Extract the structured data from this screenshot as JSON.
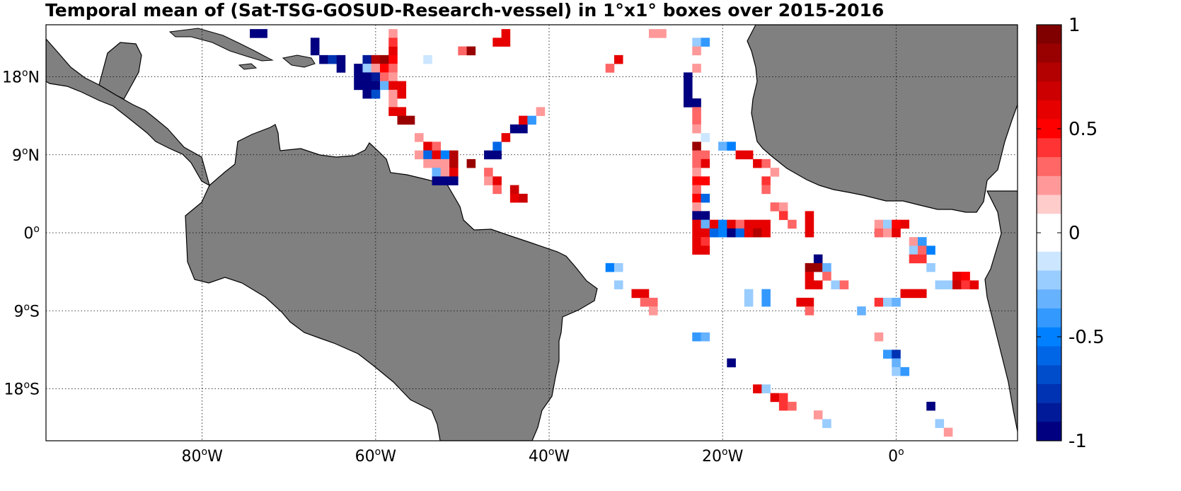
{
  "title": "Temporal mean of (Sat-TSG-GOSUD-Research-vessel) in 1°x1° boxes over 2015-2016",
  "colors": {
    "land": "#808080",
    "coast": "#000000",
    "ocean": "#ffffff",
    "grid": "#000000"
  },
  "map_extent": {
    "lon": [
      -98,
      14
    ],
    "lat": [
      -24,
      24
    ]
  },
  "lon_ticks": [
    {
      "value": -80,
      "num": "80",
      "deg": "o",
      "hemi": "W"
    },
    {
      "value": -60,
      "num": "60",
      "deg": "o",
      "hemi": "W"
    },
    {
      "value": -40,
      "num": "40",
      "deg": "o",
      "hemi": "W"
    },
    {
      "value": -20,
      "num": "20",
      "deg": "o",
      "hemi": "W"
    },
    {
      "value": 0,
      "num": "0",
      "deg": "o",
      "hemi": ""
    }
  ],
  "lat_ticks": [
    {
      "value": 18,
      "num": "18",
      "deg": "o",
      "hemi": "N"
    },
    {
      "value": 9,
      "num": "9",
      "deg": "o",
      "hemi": "N"
    },
    {
      "value": 0,
      "num": "0",
      "deg": "o",
      "hemi": ""
    },
    {
      "value": -9,
      "num": "9",
      "deg": "o",
      "hemi": "S"
    },
    {
      "value": -18,
      "num": "18",
      "deg": "o",
      "hemi": "S"
    }
  ],
  "colorbar": {
    "range": [
      -1,
      1
    ],
    "labels": [
      "1",
      "0.5",
      "0",
      "-0.5",
      "-1"
    ],
    "label_values": [
      1,
      0.5,
      0,
      -0.5,
      -1
    ],
    "colors_top_to_bottom": [
      "#800000",
      "#990000",
      "#b30000",
      "#cc0000",
      "#e60000",
      "#ff0000",
      "#ff3333",
      "#ff6666",
      "#ff9999",
      "#ffcccc",
      "#ffffff",
      "#ffffff",
      "#cce6ff",
      "#99ccff",
      "#66b2ff",
      "#3399ff",
      "#0080ff",
      "#0066e6",
      "#004dcc",
      "#0033b3",
      "#001a99",
      "#000080"
    ]
  },
  "chart_data": {
    "type": "heatmap",
    "title": "Temporal mean of (Sat-TSG-GOSUD-Research-vessel) in 1°x1° boxes over 2015-2016",
    "grid": "1°x1° boxes",
    "value_range": [
      -1,
      1
    ],
    "cells": [
      {
        "lon": -74,
        "lat": 23,
        "v": -1.0
      },
      {
        "lon": -73,
        "lat": 23,
        "v": -1.0
      },
      {
        "lon": -67,
        "lat": 22,
        "v": -1.0
      },
      {
        "lon": -67,
        "lat": 21,
        "v": -1.0
      },
      {
        "lon": -66,
        "lat": 20,
        "v": -1.0
      },
      {
        "lon": -65,
        "lat": 20,
        "v": -0.8
      },
      {
        "lon": -64,
        "lat": 20,
        "v": -1.0
      },
      {
        "lon": -64,
        "lat": 19,
        "v": -1.0
      },
      {
        "lon": -61,
        "lat": 20,
        "v": -0.9
      },
      {
        "lon": -60,
        "lat": 20,
        "v": 0.8
      },
      {
        "lon": -59,
        "lat": 20,
        "v": 0.9
      },
      {
        "lon": -58,
        "lat": 20,
        "v": 0.5
      },
      {
        "lon": -62,
        "lat": 19,
        "v": -1.0
      },
      {
        "lon": -61,
        "lat": 19,
        "v": -0.2
      },
      {
        "lon": -60,
        "lat": 19,
        "v": 0.2
      },
      {
        "lon": -59,
        "lat": 19,
        "v": 0.5
      },
      {
        "lon": -58,
        "lat": 19,
        "v": 0.3
      },
      {
        "lon": -62,
        "lat": 18,
        "v": -1.0
      },
      {
        "lon": -61,
        "lat": 18,
        "v": -1.0
      },
      {
        "lon": -60,
        "lat": 18,
        "v": -0.9
      },
      {
        "lon": -59,
        "lat": 18,
        "v": 0.3
      },
      {
        "lon": -58,
        "lat": 18,
        "v": 0.2
      },
      {
        "lon": -62,
        "lat": 17,
        "v": -1.0
      },
      {
        "lon": -61,
        "lat": 17,
        "v": -1.0
      },
      {
        "lon": -60,
        "lat": 17,
        "v": -1.0
      },
      {
        "lon": -59,
        "lat": 17,
        "v": -0.3
      },
      {
        "lon": -58,
        "lat": 17,
        "v": 0.6
      },
      {
        "lon": -57,
        "lat": 17,
        "v": 0.6
      },
      {
        "lon": -61,
        "lat": 16,
        "v": -1.0
      },
      {
        "lon": -60,
        "lat": 16,
        "v": -0.7
      },
      {
        "lon": -58,
        "lat": 16,
        "v": 0.2
      },
      {
        "lon": -57,
        "lat": 16,
        "v": 0.6
      },
      {
        "lon": -58,
        "lat": 15,
        "v": 0.2
      },
      {
        "lon": -58,
        "lat": 14,
        "v": 0.6
      },
      {
        "lon": -57,
        "lat": 14,
        "v": 0.6
      },
      {
        "lon": -57,
        "lat": 13,
        "v": 0.9
      },
      {
        "lon": -56,
        "lat": 13,
        "v": 0.9
      },
      {
        "lon": -58,
        "lat": 23,
        "v": 0.2
      },
      {
        "lon": -58,
        "lat": 21,
        "v": 0.6
      },
      {
        "lon": -58,
        "lat": 22,
        "v": 0.4
      },
      {
        "lon": -54,
        "lat": 20,
        "v": -0.1
      },
      {
        "lon": -50,
        "lat": 21,
        "v": 0.3
      },
      {
        "lon": -49,
        "lat": 21,
        "v": 0.9
      },
      {
        "lon": -46,
        "lat": 22,
        "v": 0.6
      },
      {
        "lon": -45,
        "lat": 22,
        "v": 0.6
      },
      {
        "lon": -45,
        "lat": 23,
        "v": 0.6
      },
      {
        "lon": -32,
        "lat": 20,
        "v": 0.6
      },
      {
        "lon": -33,
        "lat": 19,
        "v": 0.3
      },
      {
        "lon": -28,
        "lat": 23,
        "v": 0.2
      },
      {
        "lon": -27,
        "lat": 23,
        "v": 0.2
      },
      {
        "lon": -23,
        "lat": 22,
        "v": -0.2
      },
      {
        "lon": -22,
        "lat": 22,
        "v": -0.4
      },
      {
        "lon": -23,
        "lat": 21,
        "v": 0.2
      },
      {
        "lon": -23,
        "lat": 19,
        "v": 0.2
      },
      {
        "lon": -24,
        "lat": 18,
        "v": -1.0
      },
      {
        "lon": -24,
        "lat": 17,
        "v": -1.0
      },
      {
        "lon": -24,
        "lat": 16,
        "v": -1.0
      },
      {
        "lon": -24,
        "lat": 15,
        "v": -1.0
      },
      {
        "lon": -23,
        "lat": 15,
        "v": -1.0
      },
      {
        "lon": -23,
        "lat": 14,
        "v": 0.3
      },
      {
        "lon": -23,
        "lat": 13,
        "v": 0.3
      },
      {
        "lon": -23,
        "lat": 12,
        "v": 0.2
      },
      {
        "lon": -22,
        "lat": 11,
        "v": -0.1
      },
      {
        "lon": -23,
        "lat": 10,
        "v": 0.9
      },
      {
        "lon": -23,
        "lat": 9,
        "v": 0.3
      },
      {
        "lon": -22,
        "lat": 9,
        "v": 0.3
      },
      {
        "lon": -23,
        "lat": 8,
        "v": 0.3
      },
      {
        "lon": -22,
        "lat": 8,
        "v": 0.6
      },
      {
        "lon": -23,
        "lat": 7,
        "v": 0.2
      },
      {
        "lon": -23,
        "lat": 6,
        "v": 0.5
      },
      {
        "lon": -22,
        "lat": 6,
        "v": 0.5
      },
      {
        "lon": -23,
        "lat": 5,
        "v": 0.3
      },
      {
        "lon": -23,
        "lat": 4,
        "v": 0.5
      },
      {
        "lon": -22,
        "lat": 4,
        "v": -0.6
      },
      {
        "lon": -23,
        "lat": 3,
        "v": 0.2
      },
      {
        "lon": -20,
        "lat": 10,
        "v": -0.3
      },
      {
        "lon": -19,
        "lat": 10,
        "v": -0.5
      },
      {
        "lon": -18,
        "lat": 9,
        "v": 0.6
      },
      {
        "lon": -17,
        "lat": 9,
        "v": 0.6
      },
      {
        "lon": -16,
        "lat": 8,
        "v": 0.6
      },
      {
        "lon": -15,
        "lat": 8,
        "v": 0.3
      },
      {
        "lon": -14,
        "lat": 7,
        "v": 0.2
      },
      {
        "lon": -15,
        "lat": 6,
        "v": 0.4
      },
      {
        "lon": -15,
        "lat": 5,
        "v": 0.3
      },
      {
        "lon": -14,
        "lat": 3,
        "v": 0.3
      },
      {
        "lon": -13,
        "lat": 3,
        "v": 0.2
      },
      {
        "lon": -13,
        "lat": 2,
        "v": 0.4
      },
      {
        "lon": -12,
        "lat": 1,
        "v": 0.3
      },
      {
        "lon": -10,
        "lat": 2,
        "v": 0.6
      },
      {
        "lon": -10,
        "lat": 1,
        "v": 0.6
      },
      {
        "lon": -10,
        "lat": 0,
        "v": 0.6
      },
      {
        "lon": -23,
        "lat": 2,
        "v": -1.0
      },
      {
        "lon": -22,
        "lat": 2,
        "v": -1.0
      },
      {
        "lon": -23,
        "lat": 1,
        "v": 0.6
      },
      {
        "lon": -22,
        "lat": 1,
        "v": -0.3
      },
      {
        "lon": -21,
        "lat": 1,
        "v": 0.6
      },
      {
        "lon": -20,
        "lat": 1,
        "v": -0.5
      },
      {
        "lon": -19,
        "lat": 1,
        "v": 0.6
      },
      {
        "lon": -18,
        "lat": 1,
        "v": 0.3
      },
      {
        "lon": -17,
        "lat": 1,
        "v": 0.6
      },
      {
        "lon": -16,
        "lat": 1,
        "v": 0.6
      },
      {
        "lon": -15,
        "lat": 1,
        "v": 0.6
      },
      {
        "lon": -23,
        "lat": 0,
        "v": 0.6
      },
      {
        "lon": -22,
        "lat": 0,
        "v": 0.6
      },
      {
        "lon": -21,
        "lat": 0,
        "v": -0.6
      },
      {
        "lon": -20,
        "lat": 0,
        "v": -0.5
      },
      {
        "lon": -19,
        "lat": 0,
        "v": -1.0
      },
      {
        "lon": -18,
        "lat": 0,
        "v": -0.6
      },
      {
        "lon": -17,
        "lat": 0,
        "v": 0.6
      },
      {
        "lon": -16,
        "lat": 0,
        "v": 0.8
      },
      {
        "lon": -15,
        "lat": 0,
        "v": 0.6
      },
      {
        "lon": -23,
        "lat": -1,
        "v": 0.6
      },
      {
        "lon": -22,
        "lat": -1,
        "v": 0.4
      },
      {
        "lon": -23,
        "lat": -2,
        "v": 0.6
      },
      {
        "lon": -22,
        "lat": -2,
        "v": 0.6
      },
      {
        "lon": -55,
        "lat": 11,
        "v": 0.2
      },
      {
        "lon": -54,
        "lat": 10,
        "v": 0.6
      },
      {
        "lon": -53,
        "lat": 10,
        "v": 0.3
      },
      {
        "lon": -55,
        "lat": 9,
        "v": 0.2
      },
      {
        "lon": -54,
        "lat": 9,
        "v": -0.6
      },
      {
        "lon": -53,
        "lat": 9,
        "v": 0.6
      },
      {
        "lon": -52,
        "lat": 9,
        "v": -0.5
      },
      {
        "lon": -51,
        "lat": 9,
        "v": 0.8
      },
      {
        "lon": -54,
        "lat": 8,
        "v": 0.2
      },
      {
        "lon": -53,
        "lat": 8,
        "v": 0.2
      },
      {
        "lon": -52,
        "lat": 8,
        "v": 0.2
      },
      {
        "lon": -51,
        "lat": 8,
        "v": 0.8
      },
      {
        "lon": -49,
        "lat": 8,
        "v": 0.9
      },
      {
        "lon": -53,
        "lat": 7,
        "v": -0.3
      },
      {
        "lon": -52,
        "lat": 7,
        "v": 0.2
      },
      {
        "lon": -51,
        "lat": 7,
        "v": 0.6
      },
      {
        "lon": -53,
        "lat": 6,
        "v": -1.0
      },
      {
        "lon": -52,
        "lat": 6,
        "v": -1.0
      },
      {
        "lon": -51,
        "lat": 6,
        "v": -1.0
      },
      {
        "lon": -47,
        "lat": 7,
        "v": 0.3
      },
      {
        "lon": -47,
        "lat": 6,
        "v": 0.2
      },
      {
        "lon": -46,
        "lat": 6,
        "v": 0.6
      },
      {
        "lon": -46,
        "lat": 5,
        "v": 0.3
      },
      {
        "lon": -44,
        "lat": 5,
        "v": 0.7
      },
      {
        "lon": -44,
        "lat": 4,
        "v": 0.6
      },
      {
        "lon": -43,
        "lat": 4,
        "v": 0.7
      },
      {
        "lon": -47,
        "lat": 9,
        "v": -1.0
      },
      {
        "lon": -46,
        "lat": 9,
        "v": -1.0
      },
      {
        "lon": -46,
        "lat": 10,
        "v": -0.6
      },
      {
        "lon": -45,
        "lat": 11,
        "v": 0.6
      },
      {
        "lon": -44,
        "lat": 12,
        "v": -1.0
      },
      {
        "lon": -43,
        "lat": 12,
        "v": -1.0
      },
      {
        "lon": -43,
        "lat": 13,
        "v": 0.6
      },
      {
        "lon": -42,
        "lat": 13,
        "v": -0.4
      },
      {
        "lon": -41,
        "lat": 14,
        "v": 0.2
      },
      {
        "lon": -33,
        "lat": -4,
        "v": -0.5
      },
      {
        "lon": -32,
        "lat": -4,
        "v": -0.2
      },
      {
        "lon": -32,
        "lat": -6,
        "v": -0.2
      },
      {
        "lon": -30,
        "lat": -7,
        "v": 0.6
      },
      {
        "lon": -29,
        "lat": -7,
        "v": 0.6
      },
      {
        "lon": -29,
        "lat": -8,
        "v": 0.3
      },
      {
        "lon": -28,
        "lat": -8,
        "v": 0.3
      },
      {
        "lon": -28,
        "lat": -9,
        "v": 0.2
      },
      {
        "lon": -23,
        "lat": -12,
        "v": -0.4
      },
      {
        "lon": -22,
        "lat": -12,
        "v": -0.3
      },
      {
        "lon": -19,
        "lat": -15,
        "v": -1.0
      },
      {
        "lon": -17,
        "lat": -7,
        "v": -0.2
      },
      {
        "lon": -17,
        "lat": -8,
        "v": -0.2
      },
      {
        "lon": -15,
        "lat": -7,
        "v": -0.4
      },
      {
        "lon": -15,
        "lat": -8,
        "v": -0.4
      },
      {
        "lon": -16,
        "lat": -18,
        "v": 0.6
      },
      {
        "lon": -15,
        "lat": -18,
        "v": -0.2
      },
      {
        "lon": -14,
        "lat": -19,
        "v": 0.6
      },
      {
        "lon": -13,
        "lat": -19,
        "v": 0.4
      },
      {
        "lon": -13,
        "lat": -20,
        "v": 0.4
      },
      {
        "lon": -12,
        "lat": -20,
        "v": 0.3
      },
      {
        "lon": -9,
        "lat": -21,
        "v": 0.2
      },
      {
        "lon": -8,
        "lat": -22,
        "v": -0.2
      },
      {
        "lon": -11,
        "lat": -8,
        "v": 0.6
      },
      {
        "lon": -10,
        "lat": -8,
        "v": 0.6
      },
      {
        "lon": -10,
        "lat": -9,
        "v": 0.3
      },
      {
        "lon": -9,
        "lat": -3,
        "v": -1.0
      },
      {
        "lon": -10,
        "lat": -4,
        "v": 0.9
      },
      {
        "lon": -9,
        "lat": -4,
        "v": 0.9
      },
      {
        "lon": -8,
        "lat": -4,
        "v": -0.3
      },
      {
        "lon": -10,
        "lat": -5,
        "v": 0.6
      },
      {
        "lon": -8,
        "lat": -5,
        "v": 0.3
      },
      {
        "lon": -10,
        "lat": -6,
        "v": 0.6
      },
      {
        "lon": -9,
        "lat": -6,
        "v": 0.6
      },
      {
        "lon": -7,
        "lat": -6,
        "v": -0.2
      },
      {
        "lon": -6,
        "lat": -6,
        "v": 0.3
      },
      {
        "lon": -4,
        "lat": -9,
        "v": -0.3
      },
      {
        "lon": -2,
        "lat": 1,
        "v": 0.2
      },
      {
        "lon": -1,
        "lat": 1,
        "v": -0.2
      },
      {
        "lon": 0,
        "lat": 1,
        "v": 0.5
      },
      {
        "lon": 1,
        "lat": 1,
        "v": 0.6
      },
      {
        "lon": -2,
        "lat": 0,
        "v": 0.3
      },
      {
        "lon": -1,
        "lat": 0,
        "v": 0.2
      },
      {
        "lon": 0,
        "lat": 0,
        "v": 0.6
      },
      {
        "lon": 2,
        "lat": -1,
        "v": 0.2
      },
      {
        "lon": 3,
        "lat": -1,
        "v": -0.4
      },
      {
        "lon": 2,
        "lat": -2,
        "v": -0.2
      },
      {
        "lon": 3,
        "lat": -2,
        "v": 0.3
      },
      {
        "lon": 4,
        "lat": -2,
        "v": -0.5
      },
      {
        "lon": 2,
        "lat": -3,
        "v": 0.4
      },
      {
        "lon": 3,
        "lat": -3,
        "v": 0.4
      },
      {
        "lon": 4,
        "lat": -4,
        "v": -0.2
      },
      {
        "lon": 7,
        "lat": -5,
        "v": 0.6
      },
      {
        "lon": 8,
        "lat": -5,
        "v": 0.5
      },
      {
        "lon": 5,
        "lat": -6,
        "v": -0.2
      },
      {
        "lon": 6,
        "lat": -6,
        "v": -0.2
      },
      {
        "lon": 7,
        "lat": -6,
        "v": 0.7
      },
      {
        "lon": 8,
        "lat": -6,
        "v": 0.4
      },
      {
        "lon": 9,
        "lat": -6,
        "v": 0.6
      },
      {
        "lon": 1,
        "lat": -7,
        "v": 0.6
      },
      {
        "lon": 2,
        "lat": -7,
        "v": 0.6
      },
      {
        "lon": 3,
        "lat": -7,
        "v": 0.6
      },
      {
        "lon": -2,
        "lat": -8,
        "v": 0.4
      },
      {
        "lon": -1,
        "lat": -8,
        "v": -0.2
      },
      {
        "lon": 0,
        "lat": -8,
        "v": -0.3
      },
      {
        "lon": -2,
        "lat": -12,
        "v": 0.2
      },
      {
        "lon": -1,
        "lat": -14,
        "v": -0.4
      },
      {
        "lon": 0,
        "lat": -14,
        "v": -0.8
      },
      {
        "lon": 0,
        "lat": -15,
        "v": -0.3
      },
      {
        "lon": 0,
        "lat": -16,
        "v": -0.2
      },
      {
        "lon": 1,
        "lat": -16,
        "v": -0.4
      },
      {
        "lon": 4,
        "lat": -20,
        "v": -1.0
      },
      {
        "lon": 5,
        "lat": -22,
        "v": -0.2
      },
      {
        "lon": 6,
        "lat": -23,
        "v": 0.2
      }
    ]
  }
}
